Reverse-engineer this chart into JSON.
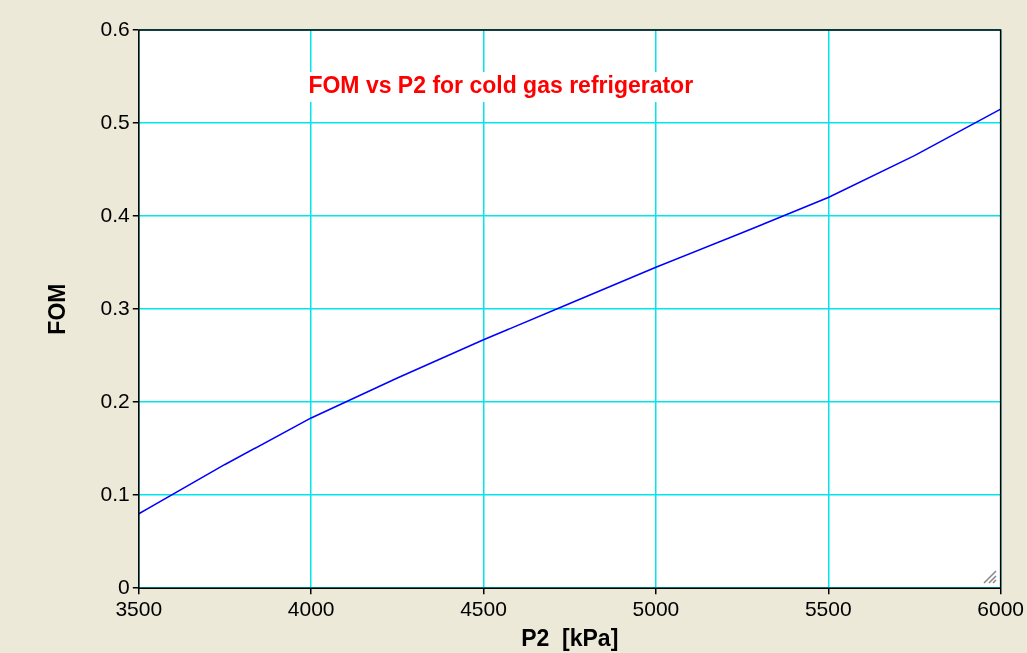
{
  "chart_data": {
    "type": "line",
    "title": "FOM vs P2 for cold gas refrigerator",
    "xlabel": "P2  [kPa]",
    "ylabel": "FOM",
    "x": [
      3500,
      3750,
      4000,
      4250,
      4500,
      4750,
      5000,
      5250,
      5500,
      5750,
      6000
    ],
    "series": [
      {
        "color": "#0000ff",
        "values": [
          0.08,
          0.133,
          0.183,
          0.226,
          0.267,
          0.306,
          0.345,
          0.382,
          0.42,
          0.465,
          0.515
        ]
      }
    ],
    "xlim": [
      3500,
      6000
    ],
    "xticks": [
      3500,
      4000,
      4500,
      5000,
      5500,
      6000
    ],
    "ylim": [
      0,
      0.6
    ],
    "yticks": [
      0,
      0.1,
      0.2,
      0.3,
      0.4,
      0.5,
      0.6
    ],
    "grid": true,
    "legend": false,
    "marker": "none",
    "line_style": "solid"
  }
}
